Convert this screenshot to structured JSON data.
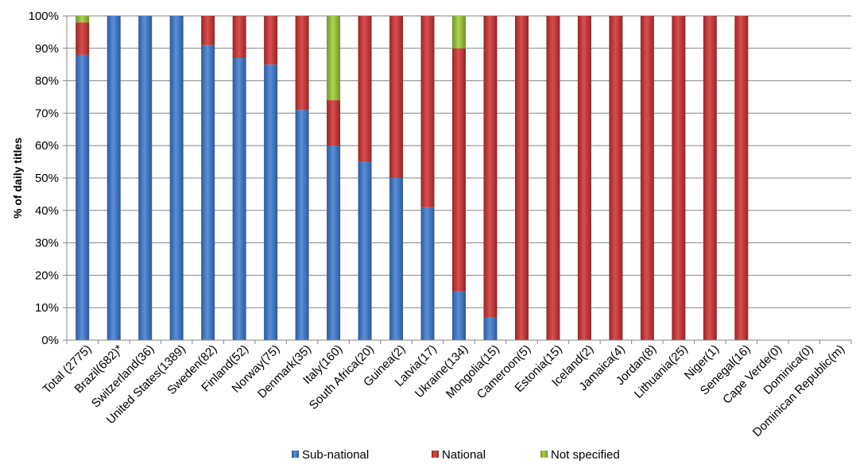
{
  "chart_data": {
    "type": "bar",
    "stacked": true,
    "percent_stacked": true,
    "title": "",
    "xlabel": "",
    "ylabel": "% of daily titles",
    "ylim": [
      0,
      100
    ],
    "y_ticks": [
      "0%",
      "10%",
      "20%",
      "30%",
      "40%",
      "50%",
      "60%",
      "70%",
      "80%",
      "90%",
      "100%"
    ],
    "grid": "horizontal",
    "legend_position": "bottom",
    "categories": [
      "Total (2775)",
      "Brazil(682)*",
      "Switzerland(36)",
      "United States(1389)",
      "Sweden(82)",
      "Finland(52)",
      "Norway(75)",
      "Denmark(35)",
      "Italy(160)",
      "South Africa(20)",
      "Guinea(2)",
      "Latvia(17)",
      "Ukraine(134)",
      "Mongolia(15)",
      "Cameroon(5)",
      "Estonia(15)",
      "Iceland(2)",
      "Jamaica(4)",
      "Jordan(8)",
      "Lithuania(25)",
      "Niger(1)",
      "Senegal(16)",
      "Cape Verde(0)",
      "Dominica(0)",
      "Dominican Republic(m)"
    ],
    "series": [
      {
        "name": "Sub-national",
        "color": "#4477c4",
        "values": [
          88,
          100,
          100,
          100,
          91,
          87,
          85,
          71,
          60,
          55,
          50,
          41,
          15,
          7,
          0,
          0,
          0,
          0,
          0,
          0,
          0,
          0,
          0,
          0,
          0
        ]
      },
      {
        "name": "National",
        "color": "#c83a3a",
        "values": [
          10,
          0,
          0,
          0,
          9,
          13,
          15,
          29,
          14,
          45,
          50,
          59,
          75,
          93,
          100,
          100,
          100,
          100,
          100,
          100,
          100,
          100,
          0,
          0,
          0
        ]
      },
      {
        "name": "Not specified",
        "color": "#9bc43c",
        "values": [
          2,
          0,
          0,
          0,
          0,
          0,
          0,
          0,
          26,
          0,
          0,
          0,
          10,
          0,
          0,
          0,
          0,
          0,
          0,
          0,
          0,
          0,
          0,
          0,
          0
        ]
      }
    ]
  }
}
